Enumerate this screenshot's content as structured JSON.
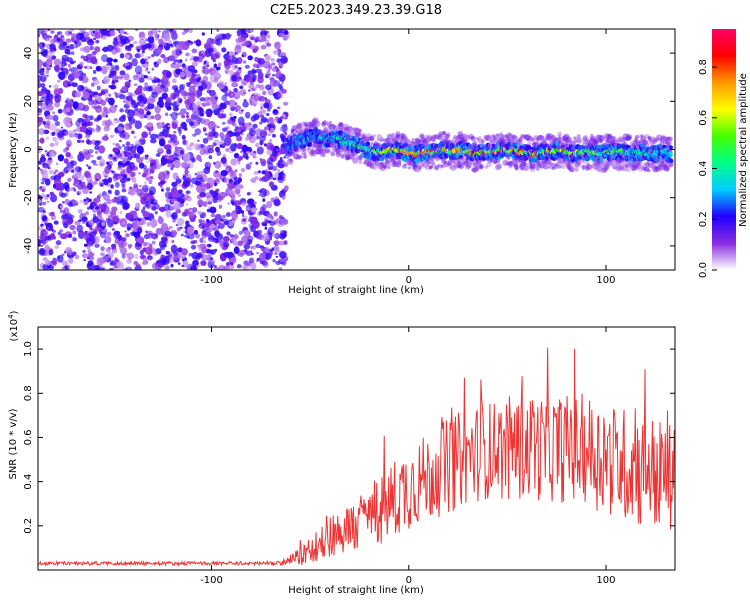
{
  "page": {
    "title": "C2E5.2023.349.23.39.G18"
  },
  "chart_data": [
    {
      "type": "heatmap",
      "xlabel": "Height of straight line (km)",
      "ylabel": "Frequency (Hz)",
      "xlim": [
        -188,
        135
      ],
      "ylim": [
        -50,
        50
      ],
      "xticks": [
        -100,
        0,
        100
      ],
      "yticks": [
        -40,
        -20,
        0,
        20,
        40
      ],
      "noise_region_x": [
        -188,
        -62
      ],
      "signal_track": {
        "x": [
          -62,
          -57,
          -52,
          -47,
          -42,
          -37,
          -32,
          -27,
          -22,
          -17,
          -12,
          -7,
          -2,
          3,
          8,
          13,
          18,
          23,
          28,
          33,
          38,
          43,
          48,
          53,
          58,
          63,
          68,
          73,
          78,
          83,
          88,
          93,
          98,
          103,
          108,
          113,
          118,
          123,
          128,
          133
        ],
        "frequency": [
          1,
          3,
          4,
          6,
          4,
          5,
          3,
          2,
          0,
          -1,
          -1,
          0,
          -1,
          -2,
          -1,
          -1,
          0,
          -1,
          0,
          -2,
          -1,
          -1,
          0,
          -1,
          -1,
          -2,
          -1,
          -1,
          0,
          -2,
          -1,
          -1,
          -2,
          -1,
          -1,
          -2,
          -1,
          -2,
          -1,
          -2
        ],
        "peak_amplitude": [
          0.3,
          0.35,
          0.4,
          0.4,
          0.45,
          0.45,
          0.5,
          0.55,
          0.6,
          0.7,
          0.75,
          0.8,
          0.85,
          0.85,
          0.9,
          0.9,
          0.9,
          0.9,
          0.9,
          0.95,
          0.9,
          0.9,
          0.95,
          0.9,
          0.9,
          0.9,
          0.9,
          0.85,
          0.85,
          0.8,
          0.8,
          0.75,
          0.7,
          0.65,
          0.6,
          0.55,
          0.5,
          0.5,
          0.45,
          0.45
        ]
      },
      "colorbar": {
        "label": "Normalized spectral amplitude",
        "range": [
          0,
          0.95
        ],
        "ticks": [
          0,
          0.2,
          0.4,
          0.6,
          0.8
        ],
        "tick_labels": [
          "0.0",
          "0.2",
          "0.4",
          "0.6",
          "0.8"
        ],
        "colors": [
          "#ffffff",
          "#8a2be2",
          "#2200ff",
          "#00ccff",
          "#00ff88",
          "#44ff00",
          "#ffff00",
          "#ff9900",
          "#ff0000",
          "#ff0066"
        ]
      }
    },
    {
      "type": "line",
      "xlabel": "Height of straight line (km)",
      "ylabel": "SNR (10 * v/v)",
      "y_multiplier_label": "(x10",
      "y_multiplier_exp": "4",
      "xlim": [
        -188,
        135
      ],
      "ylim": [
        0,
        1.1
      ],
      "xticks": [
        -100,
        0,
        100
      ],
      "yticks": [
        0.2,
        0.4,
        0.6,
        0.8,
        1.0
      ],
      "ytick_labels": [
        "0.2",
        "0.4",
        "0.6",
        "0.8",
        "1.0"
      ],
      "series": [
        {
          "color": "#ee3333",
          "envelope": {
            "x": [
              -188,
              -150,
              -120,
              -100,
              -80,
              -65,
              -55,
              -45,
              -40,
              -30,
              -20,
              -10,
              0,
              10,
              20,
              30,
              40,
              50,
              60,
              70,
              80,
              90,
              100,
              110,
              120,
              130,
              135
            ],
            "mean": [
              0.03,
              0.03,
              0.03,
              0.03,
              0.03,
              0.03,
              0.06,
              0.12,
              0.16,
              0.18,
              0.25,
              0.3,
              0.38,
              0.42,
              0.47,
              0.52,
              0.54,
              0.55,
              0.55,
              0.55,
              0.55,
              0.55,
              0.5,
              0.48,
              0.45,
              0.42,
              0.4
            ],
            "spread": [
              0.008,
              0.008,
              0.008,
              0.008,
              0.008,
              0.01,
              0.04,
              0.08,
              0.1,
              0.12,
              0.15,
              0.18,
              0.2,
              0.2,
              0.22,
              0.22,
              0.22,
              0.24,
              0.24,
              0.24,
              0.25,
              0.25,
              0.26,
              0.26,
              0.27,
              0.26,
              0.25
            ]
          }
        }
      ]
    }
  ]
}
